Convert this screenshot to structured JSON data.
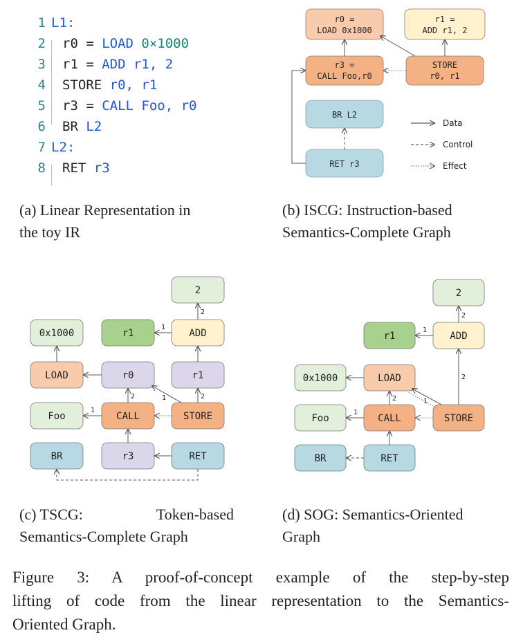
{
  "colors": {
    "orange": "#f5c8a6",
    "orange_dark": "#f4b183",
    "yellow": "#fff2cc",
    "blue": "#b6d9e4",
    "lavender": "#dcd6ea",
    "light_green": "#e2efda",
    "green": "#a9d18e",
    "line": "#555555"
  },
  "panel_a": {
    "code_lines": [
      {
        "n": "1",
        "text": "L1:",
        "style": "label"
      },
      {
        "n": "2",
        "parts": [
          {
            "t": "r0",
            "c": "black"
          },
          {
            "t": " = ",
            "c": "black"
          },
          {
            "t": "LOAD",
            "c": "blue"
          },
          {
            "t": " 0×1000",
            "c": "green"
          }
        ]
      },
      {
        "n": "3",
        "parts": [
          {
            "t": "r1",
            "c": "black"
          },
          {
            "t": " = ",
            "c": "black"
          },
          {
            "t": "ADD",
            "c": "blue"
          },
          {
            "t": " r1, 2",
            "c": "blue"
          }
        ]
      },
      {
        "n": "4",
        "parts": [
          {
            "t": "STORE",
            "c": "black"
          },
          {
            "t": " r0, r1",
            "c": "blue"
          }
        ]
      },
      {
        "n": "5",
        "parts": [
          {
            "t": "r3",
            "c": "black"
          },
          {
            "t": " = ",
            "c": "black"
          },
          {
            "t": "CALL",
            "c": "blue"
          },
          {
            "t": " Foo, r0",
            "c": "blue"
          }
        ]
      },
      {
        "n": "6",
        "parts": [
          {
            "t": "BR",
            "c": "black"
          },
          {
            "t": " L2",
            "c": "blue"
          }
        ]
      },
      {
        "n": "7",
        "text": "L2:",
        "style": "label"
      },
      {
        "n": "8",
        "parts": [
          {
            "t": "RET",
            "c": "black"
          },
          {
            "t": " r3",
            "c": "blue"
          }
        ]
      }
    ],
    "caption_line1": "(a) Linear Representation in",
    "caption_line2": "the toy IR"
  },
  "panel_b": {
    "nodes": {
      "r0_line1": "r0 =",
      "r0_line2": "LOAD 0x1000",
      "r1_line1": "r1 =",
      "r1_line2": "ADD r1, 2",
      "r3_line1": "r3 =",
      "r3_line2": "CALL Foo,r0",
      "store_line1": "STORE",
      "store_line2": "r0, r1",
      "br": "BR L2",
      "ret": "RET r3"
    },
    "legend": {
      "data": "Data",
      "control": "Control",
      "effect": "Effect"
    },
    "caption_line1": "(b) ISCG: Instruction-based",
    "caption_line2": "Semantics-Complete Graph"
  },
  "panel_c": {
    "nodes": {
      "two": "2",
      "const": "0x1000",
      "r1_top": "r1",
      "add": "ADD",
      "load": "LOAD",
      "r0": "r0",
      "r1_mid": "r1",
      "foo": "Foo",
      "call": "CALL",
      "store": "STORE",
      "br": "BR",
      "r3": "r3",
      "ret": "RET"
    },
    "edge_labels": {
      "add_r1": "1",
      "add_two": "2",
      "call_foo": "1",
      "call_r0": "2",
      "store_r0": "1",
      "store_r1": "2"
    },
    "caption_line1_left": "(c)  TSCG:",
    "caption_line1_right": "Token-based",
    "caption_line2": "Semantics-Complete Graph"
  },
  "panel_d": {
    "nodes": {
      "two": "2",
      "r1": "r1",
      "add": "ADD",
      "const": "0x1000",
      "load": "LOAD",
      "foo": "Foo",
      "call": "CALL",
      "store": "STORE",
      "br": "BR",
      "ret": "RET"
    },
    "edge_labels": {
      "add_r1": "1",
      "add_two": "2",
      "store_add": "2",
      "load_call": "2",
      "store_load": "1",
      "call_foo": "1"
    },
    "caption_line1": "(d) SOG: Semantics-Oriented",
    "caption_line2": "Graph"
  },
  "figure_caption": {
    "line1": "Figure 3:  A proof-of-concept example of the step-by-step",
    "line2": "lifting of code from the linear representation to the Semantics-",
    "line3": "Oriented Graph."
  }
}
